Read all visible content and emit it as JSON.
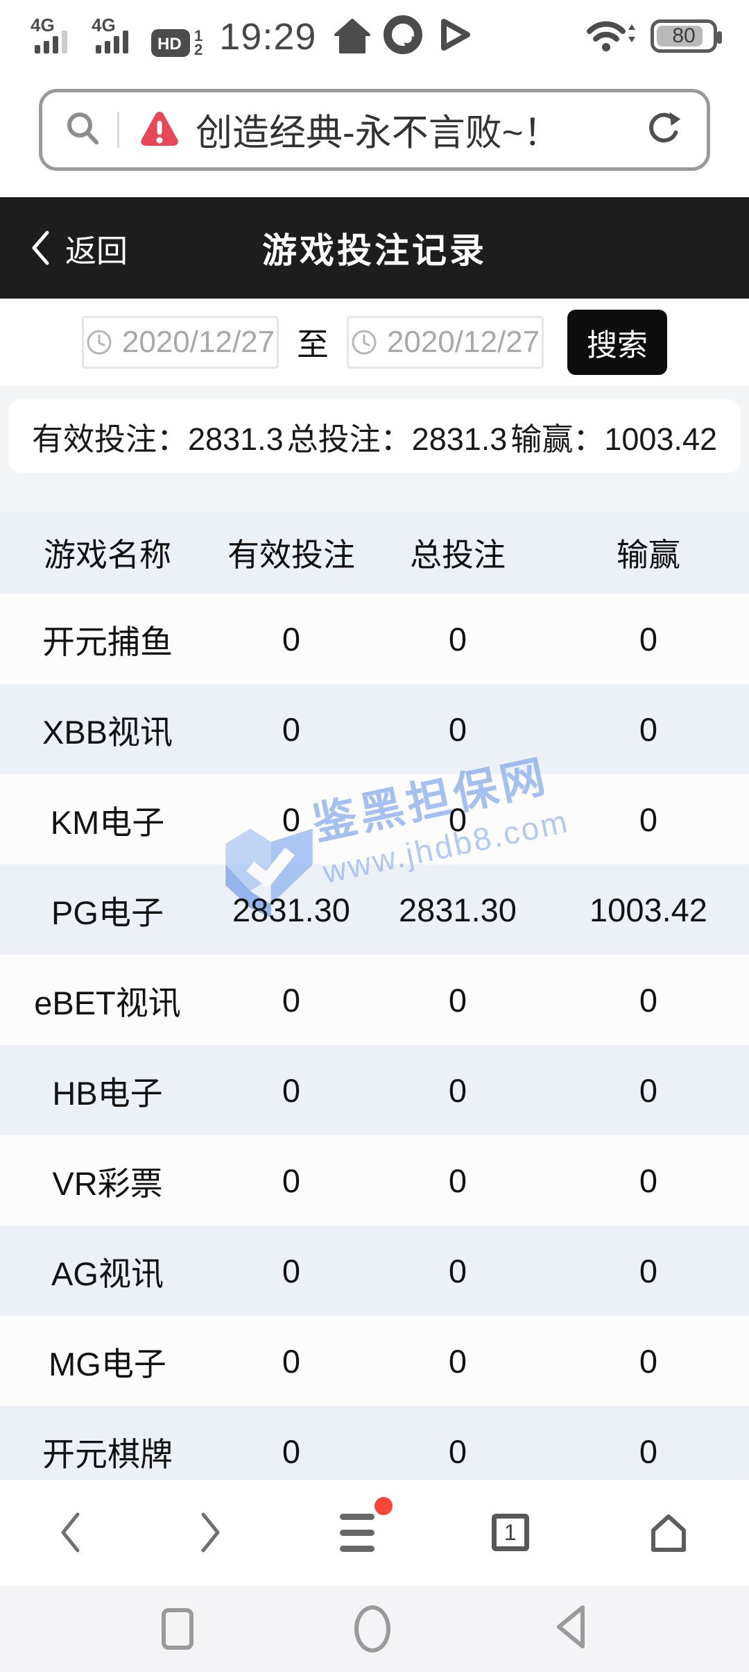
{
  "status_bar": {
    "time": "19:29",
    "battery_level": "80",
    "sim1_network": "4G",
    "sim2_network": "4G",
    "hd_label": "HD",
    "hd_sub_top": "1",
    "hd_sub_bottom": "2"
  },
  "browser": {
    "url_title": "创造经典-永不言败~！",
    "tab_count": "1"
  },
  "page_header": {
    "back_label": "返回",
    "title": "游戏投注记录"
  },
  "filters": {
    "date_from": "2020/12/27",
    "separator": "至",
    "date_to": "2020/12/27",
    "search_label": "搜索"
  },
  "summary": {
    "items": [
      {
        "label": "有效投注：",
        "value": "2831.3"
      },
      {
        "label": "总投注：",
        "value": "2831.3"
      },
      {
        "label": "输赢：",
        "value": "1003.42"
      }
    ]
  },
  "table": {
    "headers": [
      "游戏名称",
      "有效投注",
      "总投注",
      "输赢"
    ],
    "rows": [
      [
        "开元捕鱼",
        "0",
        "0",
        "0"
      ],
      [
        "XBB视讯",
        "0",
        "0",
        "0"
      ],
      [
        "KM电子",
        "0",
        "0",
        "0"
      ],
      [
        "PG电子",
        "2831.30",
        "2831.30",
        "1003.42"
      ],
      [
        "eBET视讯",
        "0",
        "0",
        "0"
      ],
      [
        "HB电子",
        "0",
        "0",
        "0"
      ],
      [
        "VR彩票",
        "0",
        "0",
        "0"
      ],
      [
        "AG视讯",
        "0",
        "0",
        "0"
      ],
      [
        "MG电子",
        "0",
        "0",
        "0"
      ],
      [
        "开元棋牌",
        "0",
        "0",
        "0"
      ]
    ]
  },
  "watermark": {
    "title": "鉴黑担保网",
    "url": "www.jhdb8.com"
  },
  "colors": {
    "header_bg": "#1d1d1d",
    "row_alt_bg": "#ecf1f8",
    "warning_red": "#e8475a",
    "badge_red": "#f9453c",
    "watermark_blue": "#6f9ce9"
  }
}
